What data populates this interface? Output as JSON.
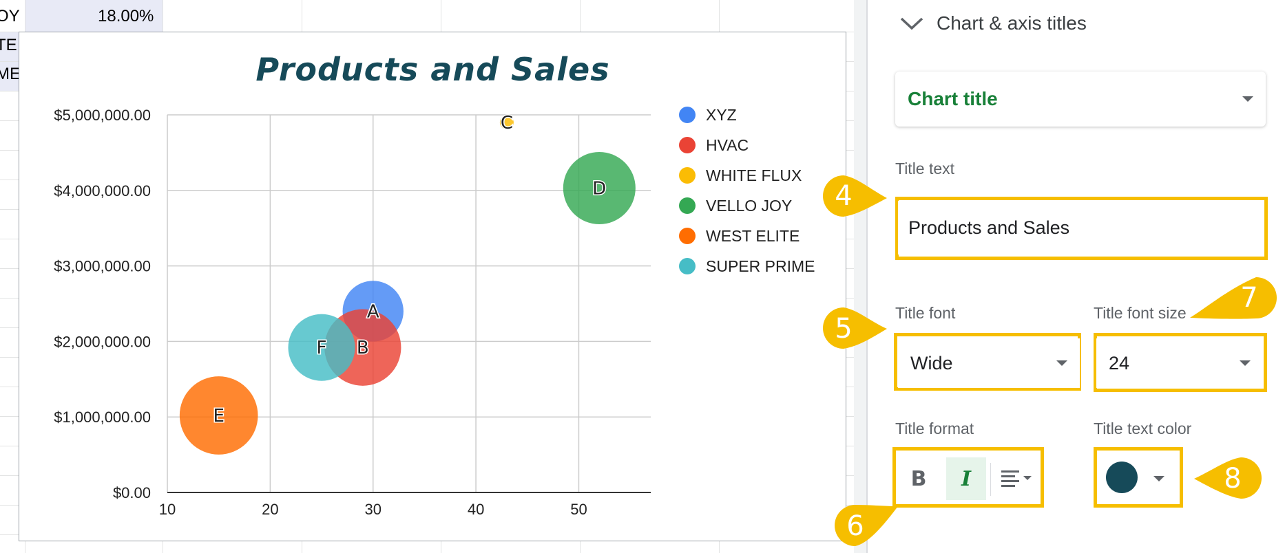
{
  "sheet": {
    "cells": [
      {
        "text": "OY",
        "row": 0
      },
      {
        "text": "TE",
        "row": 1
      },
      {
        "text": "ME",
        "row": 2
      }
    ],
    "percent_cell": "18.00%"
  },
  "chart_data": {
    "type": "scatter",
    "title": "Products and Sales",
    "x_ticks": [
      "10",
      "20",
      "30",
      "40",
      "50"
    ],
    "y_ticks": [
      "$0.00",
      "$1,000,000.00",
      "$2,000,000.00",
      "$3,000,000.00",
      "$4,000,000.00",
      "$5,000,000.00"
    ],
    "xlim": [
      10,
      57
    ],
    "ylim": [
      0,
      5000000
    ],
    "grid": true,
    "legend_position": "right",
    "series": [
      {
        "name": "XYZ",
        "label": "A",
        "x": 30,
        "y": 2400000,
        "color": "#4285f4",
        "size": 0.58
      },
      {
        "name": "HVAC",
        "label": "B",
        "x": 29,
        "y": 1920000,
        "color": "#ea4335",
        "size": 0.92
      },
      {
        "name": "WHITE FLUX",
        "label": "C",
        "x": 43,
        "y": 4900000,
        "color": "#fbbc04",
        "size": 0.03
      },
      {
        "name": "VELLO JOY",
        "label": "D",
        "x": 52,
        "y": 4030000,
        "color": "#34a853",
        "size": 0.82
      },
      {
        "name": "WEST ELITE",
        "label": "E",
        "x": 15,
        "y": 1020000,
        "color": "#ff6d01",
        "size": 0.96
      },
      {
        "name": "SUPER PRIME",
        "label": "F",
        "x": 25,
        "y": 1920000,
        "color": "#46bdc6",
        "size": 0.7
      }
    ]
  },
  "panel": {
    "section_title": "Chart & axis titles",
    "title_type": "Chart title",
    "title_text_label": "Title text",
    "title_text_value": "Products and Sales",
    "title_font_label": "Title font",
    "title_font_value": "Wide",
    "title_font_size_label": "Title font size",
    "title_font_size_value": "24",
    "title_format_label": "Title format",
    "bold_glyph": "B",
    "italic_glyph": "I",
    "title_text_color_label": "Title text color",
    "title_text_color": "#164a59"
  },
  "callouts": {
    "c4": "4",
    "c5": "5",
    "c6": "6",
    "c7": "7",
    "c8": "8"
  },
  "colors": {
    "highlight": "#f6be00",
    "accent_green": "#188038"
  }
}
